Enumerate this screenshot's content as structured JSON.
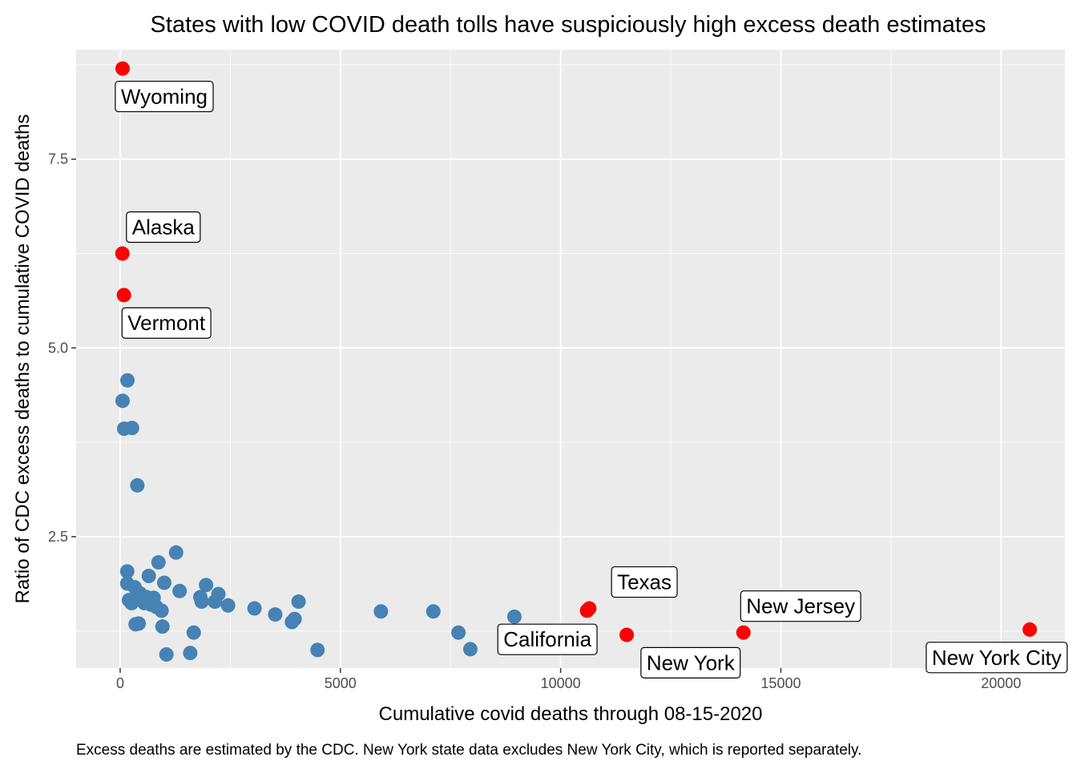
{
  "chart_data": {
    "type": "scatter",
    "title": "States with low COVID death tolls have suspiciously high excess death estimates",
    "xlabel": "Cumulative covid deaths through 08-15-2020",
    "ylabel": "Ratio of CDC excess deaths to cumulative COVID deaths",
    "caption": "Excess deaths are estimated by the CDC. New York state data excludes New York City, which is reported separately.",
    "xlim": [
      -1000,
      21450
    ],
    "ylim": [
      0.76,
      8.95
    ],
    "xticks": [
      0,
      5000,
      10000,
      15000,
      20000
    ],
    "xtick_labels": [
      "0",
      "5000",
      "10000",
      "15000",
      "20000"
    ],
    "yticks": [
      2.5,
      5.0,
      7.5
    ],
    "ytick_labels": [
      "2.5",
      "5.0",
      "7.5"
    ],
    "grid": true,
    "colors": {
      "panel": "#ebebeb",
      "grid_major": "#ffffff",
      "highlight": "#ff0000",
      "normal": "#4682b4"
    },
    "highlighted": [
      {
        "x": 55,
        "y": 8.7,
        "label": "Wyoming",
        "label_x": 1000,
        "label_y": 8.33
      },
      {
        "x": 50,
        "y": 6.25,
        "label": "Alaska",
        "label_x": 980,
        "label_y": 6.6
      },
      {
        "x": 85,
        "y": 5.7,
        "label": "Vermont",
        "label_x": 1050,
        "label_y": 5.33
      },
      {
        "x": 10650,
        "y": 1.55,
        "label": "Texas",
        "label_x": 11900,
        "label_y": 1.9
      },
      {
        "x": 10600,
        "y": 1.52,
        "label": "California",
        "label_x": 9700,
        "label_y": 1.14
      },
      {
        "x": 11500,
        "y": 1.2,
        "label": "New York",
        "label_x": 12950,
        "label_y": 0.83
      },
      {
        "x": 14150,
        "y": 1.23,
        "label": "New Jersey",
        "label_x": 15450,
        "label_y": 1.58
      },
      {
        "x": 20650,
        "y": 1.27,
        "label": "New York City",
        "label_x": 19900,
        "label_y": 0.9
      }
    ],
    "points": [
      {
        "x": 55,
        "y": 4.3
      },
      {
        "x": 90,
        "y": 3.93
      },
      {
        "x": 165,
        "y": 4.57
      },
      {
        "x": 270,
        "y": 3.94
      },
      {
        "x": 390,
        "y": 3.18
      },
      {
        "x": 160,
        "y": 2.04
      },
      {
        "x": 160,
        "y": 1.88
      },
      {
        "x": 200,
        "y": 1.66
      },
      {
        "x": 260,
        "y": 1.62
      },
      {
        "x": 330,
        "y": 1.83
      },
      {
        "x": 350,
        "y": 1.34
      },
      {
        "x": 420,
        "y": 1.35
      },
      {
        "x": 450,
        "y": 1.75
      },
      {
        "x": 500,
        "y": 1.66
      },
      {
        "x": 550,
        "y": 1.62
      },
      {
        "x": 600,
        "y": 1.7
      },
      {
        "x": 650,
        "y": 1.98
      },
      {
        "x": 700,
        "y": 1.6
      },
      {
        "x": 760,
        "y": 1.69
      },
      {
        "x": 820,
        "y": 1.57
      },
      {
        "x": 870,
        "y": 2.16
      },
      {
        "x": 940,
        "y": 1.52
      },
      {
        "x": 960,
        "y": 1.31
      },
      {
        "x": 1000,
        "y": 1.89
      },
      {
        "x": 1050,
        "y": 0.94
      },
      {
        "x": 1270,
        "y": 2.29
      },
      {
        "x": 1350,
        "y": 1.78
      },
      {
        "x": 1590,
        "y": 0.96
      },
      {
        "x": 1670,
        "y": 1.23
      },
      {
        "x": 1820,
        "y": 1.7
      },
      {
        "x": 1850,
        "y": 1.64
      },
      {
        "x": 1950,
        "y": 1.86
      },
      {
        "x": 2150,
        "y": 1.64
      },
      {
        "x": 2230,
        "y": 1.74
      },
      {
        "x": 2450,
        "y": 1.59
      },
      {
        "x": 3050,
        "y": 1.55
      },
      {
        "x": 3520,
        "y": 1.47
      },
      {
        "x": 3900,
        "y": 1.37
      },
      {
        "x": 3960,
        "y": 1.41
      },
      {
        "x": 4050,
        "y": 1.64
      },
      {
        "x": 4480,
        "y": 1.0
      },
      {
        "x": 5920,
        "y": 1.51
      },
      {
        "x": 7110,
        "y": 1.51
      },
      {
        "x": 7680,
        "y": 1.23
      },
      {
        "x": 7950,
        "y": 1.01
      },
      {
        "x": 8950,
        "y": 1.44
      }
    ]
  }
}
